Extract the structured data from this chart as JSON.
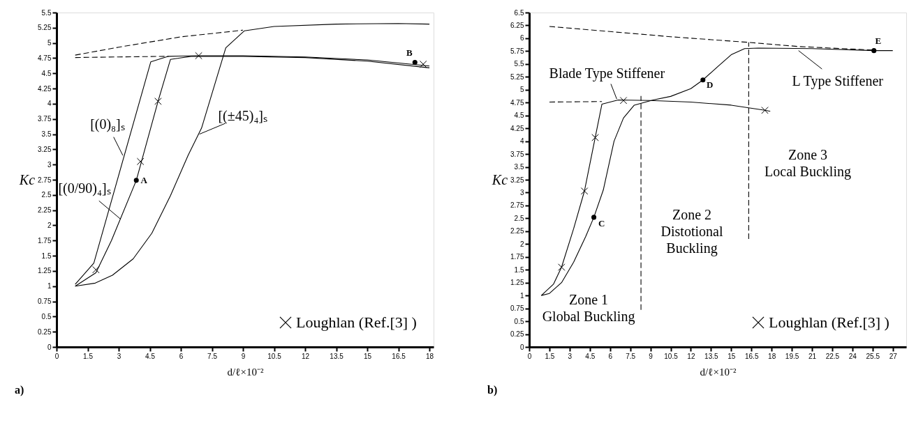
{
  "chart_data": [
    {
      "type": "line",
      "xlabel": "d/ℓ×10⁻²",
      "ylabel": "Kc",
      "xlim": [
        0,
        18.2
      ],
      "ylim": [
        0,
        5.5
      ],
      "xticks": [
        0,
        1.5,
        3,
        4.5,
        6,
        7.5,
        9,
        10.5,
        12,
        13.5,
        15,
        16.5,
        18
      ],
      "yticks": [
        0,
        0.25,
        0.5,
        0.75,
        1,
        1.25,
        1.5,
        1.75,
        2,
        2.25,
        2.5,
        2.75,
        3,
        3.25,
        3.5,
        3.75,
        4,
        4.25,
        4.5,
        4.75,
        5,
        5.25,
        5.5
      ],
      "legend": "bottom right",
      "series": [
        {
          "color": "#000000",
          "marker": "none",
          "line_style": "solid",
          "x": [
            0.9,
            1.8,
            4.55,
            5.4,
            6.8,
            9,
            12,
            15,
            18
          ],
          "values": [
            1.03,
            1.38,
            4.69,
            4.78,
            4.79,
            4.79,
            4.77,
            4.72,
            4.62
          ]
        },
        {
          "color": "#000000",
          "marker": "none",
          "line_style": "solid",
          "x": [
            0.9,
            1.9,
            2.65,
            3.85,
            4.9,
            5.5,
            6.5,
            9,
            12,
            15,
            18
          ],
          "values": [
            1.0,
            1.22,
            1.75,
            2.74,
            4.04,
            4.73,
            4.78,
            4.78,
            4.76,
            4.7,
            4.59
          ]
        },
        {
          "color": "#000000",
          "marker": "none",
          "line_style": "solid",
          "x": [
            0.9,
            1.87,
            2.7,
            3.7,
            4.6,
            5.5,
            6.35,
            7.0,
            8.17,
            9.07,
            10.5,
            13.5,
            16.5,
            18
          ],
          "values": [
            1.0,
            1.05,
            1.18,
            1.45,
            1.87,
            2.49,
            3.15,
            3.6,
            4.92,
            5.2,
            5.27,
            5.31,
            5.32,
            5.31
          ]
        },
        {
          "type": "line",
          "color": "#000000",
          "marker": "none",
          "line_style": "dashed",
          "x": [
            0.9,
            3,
            6,
            9
          ],
          "values": [
            4.8,
            4.93,
            5.1,
            5.21
          ]
        },
        {
          "type": "line",
          "color": "#000000",
          "marker": "none",
          "line_style": "dashed",
          "x": [
            0.9,
            3,
            5.4
          ],
          "values": [
            4.76,
            4.77,
            4.78
          ]
        },
        {
          "type": "scatter",
          "name": "Loughlan (Ref.[3] )",
          "color": "#000000",
          "marker": "cross",
          "x": [
            1.9,
            4.05,
            4.9,
            6.86,
            17.7
          ],
          "values": [
            1.27,
            3.05,
            4.04,
            4.79,
            4.65
          ]
        },
        {
          "type": "scatter",
          "color": "#000000",
          "marker": "circle",
          "x": [
            3.85,
            17.3
          ],
          "values": [
            2.74,
            4.68
          ]
        }
      ],
      "annotations": [
        {
          "text": "[(0)₈]ₛ",
          "x": 3.2,
          "y": 3.15
        },
        {
          "text": "[(0/90)₄]ₛ",
          "x": 3.1,
          "y": 2.1
        },
        {
          "text": "[(±45)₄]ₛ",
          "x": 6.9,
          "y": 3.5
        },
        {
          "text": "A",
          "x": 3.85,
          "y": 2.74
        },
        {
          "text": "B",
          "x": 17.3,
          "y": 4.68
        },
        "a)"
      ]
    },
    {
      "type": "line",
      "xlabel": "d/ℓ×10⁻²",
      "ylabel": "Kc",
      "xlim": [
        0,
        28
      ],
      "ylim": [
        0,
        6.5
      ],
      "xticks": [
        0,
        1.5,
        3,
        4.5,
        6,
        7.5,
        9,
        10.5,
        12,
        13.5,
        15,
        16.5,
        18,
        19.5,
        21,
        22.5,
        24,
        25.5,
        27
      ],
      "yticks": [
        0,
        0.25,
        0.5,
        0.75,
        1,
        1.25,
        1.5,
        1.75,
        2,
        2.25,
        2.5,
        2.75,
        3,
        3.25,
        3.5,
        3.75,
        4,
        4.25,
        4.5,
        4.75,
        5,
        5.25,
        5.5,
        5.75,
        6,
        6.25,
        6.5
      ],
      "legend": "bottom right",
      "series": [
        {
          "color": "#000000",
          "marker": "none",
          "line_style": "solid",
          "x": [
            0.9,
            1.8,
            2.4,
            3.3,
            4.1,
            4.9,
            5.4,
            6.6,
            9,
            12,
            15,
            17.5,
            17.9
          ],
          "values": [
            1.0,
            1.22,
            1.55,
            2.3,
            3.03,
            4.07,
            4.72,
            4.8,
            4.79,
            4.76,
            4.7,
            4.6,
            4.58
          ]
        },
        {
          "color": "#000000",
          "marker": "none",
          "line_style": "solid",
          "x": [
            0.9,
            1.5,
            2.4,
            3.3,
            4.2,
            4.8,
            5.5,
            6.3,
            7.0,
            7.8,
            9.2,
            10.5,
            12,
            12.9,
            14,
            15,
            16.0,
            17,
            21,
            25.6,
            27
          ],
          "values": [
            1.0,
            1.04,
            1.25,
            1.65,
            2.15,
            2.52,
            3.05,
            4.0,
            4.45,
            4.7,
            4.8,
            4.87,
            5.02,
            5.19,
            5.45,
            5.68,
            5.8,
            5.81,
            5.8,
            5.76,
            5.76
          ]
        },
        {
          "type": "line",
          "color": "#000000",
          "marker": "none",
          "line_style": "dashed",
          "x": [
            1.5,
            6,
            10.5,
            16.3,
            20,
            25.6
          ],
          "values": [
            6.23,
            6.13,
            6.03,
            5.92,
            5.84,
            5.77
          ]
        },
        {
          "type": "line",
          "color": "#000000",
          "marker": "none",
          "line_style": "dashed",
          "x": [
            1.5,
            5.4
          ],
          "values": [
            4.76,
            4.77
          ]
        },
        {
          "type": "line",
          "color": "#000000",
          "marker": "none",
          "line_style": "dashed",
          "x": [
            8.3,
            8.3
          ],
          "values": [
            0.72,
            4.88
          ]
        },
        {
          "type": "line",
          "color": "#000000",
          "marker": "none",
          "line_style": "dashed",
          "x": [
            16.3,
            16.3
          ],
          "values": [
            2.1,
            5.92
          ]
        },
        {
          "type": "scatter",
          "name": "Loughlan (Ref.[3] )",
          "color": "#000000",
          "marker": "cross",
          "x": [
            2.4,
            4.1,
            4.9,
            7.0,
            17.5
          ],
          "values": [
            1.55,
            3.03,
            4.07,
            4.79,
            4.6
          ]
        },
        {
          "type": "scatter",
          "color": "#000000",
          "marker": "circle",
          "x": [
            4.8,
            12.9,
            25.6
          ],
          "values": [
            2.52,
            5.19,
            5.76
          ]
        }
      ],
      "annotations": [
        {
          "text": "Blade Type Stiffener",
          "x": 6.5,
          "y": 4.82
        },
        {
          "text": "L Type Stiffener",
          "x": 20.0,
          "y": 5.76
        },
        "Zone 1\nGlobal Buckling",
        "Zone 2\nDistotional\nBuckling",
        "Zone 3\nLocal Buckling",
        {
          "text": "C",
          "x": 4.8,
          "y": 2.52
        },
        {
          "text": "D",
          "x": 12.9,
          "y": 5.19
        },
        {
          "text": "E",
          "x": 25.6,
          "y": 5.76
        },
        "b)"
      ]
    }
  ]
}
